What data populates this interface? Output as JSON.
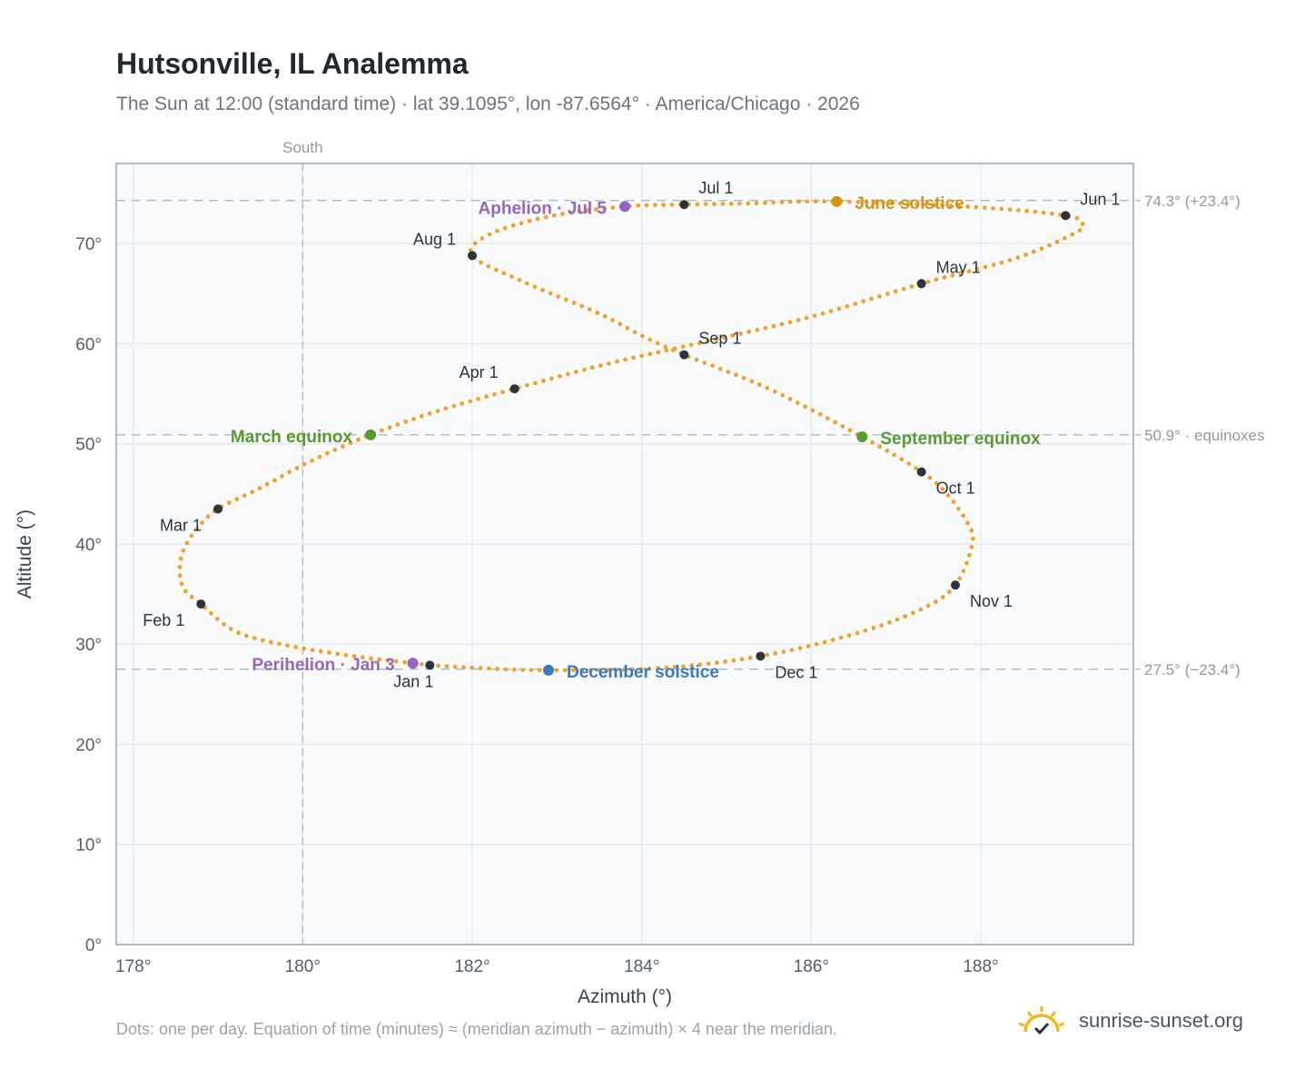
{
  "title": "Hutsonville, IL Analemma",
  "subtitle": "The Sun at 12:00 (standard time) · lat 39.1095°, lon -87.6564° · America/Chicago · 2026",
  "footnote": "Dots: one per day. Equation of time (minutes) ≈ (meridian azimuth − azimuth) × 4 near the meridian.",
  "brand": {
    "name": "sunrise-sunset.org",
    "icon": "sun-checkmark-icon"
  },
  "chart_data": {
    "type": "scatter",
    "xlabel": "Azimuth (°)",
    "ylabel": "Altitude (°)",
    "xlim": [
      177.8,
      189.8
    ],
    "ylim": [
      0,
      78
    ],
    "x_ticks": [
      178,
      180,
      182,
      184,
      186,
      188
    ],
    "x_tick_labels": [
      "178°",
      "180°",
      "182°",
      "184°",
      "186°",
      "188°"
    ],
    "y_ticks": [
      0,
      10,
      20,
      30,
      40,
      50,
      60,
      70
    ],
    "y_tick_labels": [
      "0°",
      "10°",
      "20°",
      "30°",
      "40°",
      "50°",
      "60°",
      "70°"
    ],
    "grid": true,
    "meridian": {
      "x": 180,
      "label": "South"
    },
    "reference_lines": [
      {
        "y": 74.3,
        "label": "74.3° (+23.4°)"
      },
      {
        "y": 50.9,
        "label": "50.9° · equinoxes"
      },
      {
        "y": 27.5,
        "label": "27.5° (−23.4°)"
      }
    ],
    "colors": {
      "daily": "#f0a22e",
      "month": "#2d333b",
      "june_solstice": "#d39515",
      "december_solstice": "#3a7bc0",
      "equinox": "#5a9a32",
      "apsis": "#9467bd",
      "grid": "#e5e9ee",
      "plot_bg": "#f8fafc",
      "frame": "#9aa4b2",
      "reference": "#b4bec8"
    },
    "month_markers": [
      {
        "label": "Jan 1",
        "az": 181.5,
        "alt": 27.9
      },
      {
        "label": "Feb 1",
        "az": 178.8,
        "alt": 34.0
      },
      {
        "label": "Mar 1",
        "az": 179.0,
        "alt": 43.5
      },
      {
        "label": "Apr 1",
        "az": 182.5,
        "alt": 55.5
      },
      {
        "label": "May 1",
        "az": 187.3,
        "alt": 66.0
      },
      {
        "label": "Jun 1",
        "az": 189.0,
        "alt": 72.8
      },
      {
        "label": "Jul 1",
        "az": 184.5,
        "alt": 73.9
      },
      {
        "label": "Aug 1",
        "az": 182.0,
        "alt": 68.8
      },
      {
        "label": "Sep 1",
        "az": 184.5,
        "alt": 58.9
      },
      {
        "label": "Oct 1",
        "az": 187.3,
        "alt": 47.2
      },
      {
        "label": "Nov 1",
        "az": 187.7,
        "alt": 35.9
      },
      {
        "label": "Dec 1",
        "az": 185.4,
        "alt": 28.8
      }
    ],
    "events": [
      {
        "label": "June solstice",
        "az": 186.3,
        "alt": 74.2,
        "kind": "june_solstice"
      },
      {
        "label": "December solstice",
        "az": 182.9,
        "alt": 27.4,
        "kind": "december_solstice"
      },
      {
        "label": "March equinox",
        "az": 180.8,
        "alt": 50.9,
        "kind": "equinox"
      },
      {
        "label": "September equinox",
        "az": 186.6,
        "alt": 50.7,
        "kind": "equinox"
      },
      {
        "label": "Aphelion · Jul 5",
        "az": 183.8,
        "alt": 73.7,
        "kind": "apsis"
      },
      {
        "label": "Perihelion · Jan 3",
        "az": 181.3,
        "alt": 28.1,
        "kind": "apsis"
      }
    ],
    "daily_series": {
      "name": "",
      "points": [
        [
          181.5,
          27.9
        ],
        [
          181.3,
          28.1
        ],
        [
          180.6,
          28.8
        ],
        [
          179.8,
          29.9
        ],
        [
          179.2,
          31.3
        ],
        [
          178.8,
          34.0
        ],
        [
          178.6,
          35.5
        ],
        [
          178.55,
          37.5
        ],
        [
          178.6,
          39.5
        ],
        [
          178.75,
          41.5
        ],
        [
          179.0,
          43.5
        ],
        [
          179.5,
          45.6
        ],
        [
          180.1,
          48.3
        ],
        [
          180.8,
          50.9
        ],
        [
          181.6,
          53.3
        ],
        [
          182.5,
          55.5
        ],
        [
          183.6,
          58.0
        ],
        [
          184.8,
          60.3
        ],
        [
          186.0,
          62.7
        ],
        [
          187.3,
          66.0
        ],
        [
          188.4,
          68.5
        ],
        [
          189.1,
          71.0
        ],
        [
          189.2,
          72.0
        ],
        [
          189.0,
          72.8
        ],
        [
          188.0,
          73.6
        ],
        [
          186.3,
          74.2
        ],
        [
          185.2,
          74.0
        ],
        [
          184.5,
          73.9
        ],
        [
          183.8,
          73.7
        ],
        [
          182.9,
          72.7
        ],
        [
          182.2,
          70.9
        ],
        [
          182.0,
          68.8
        ],
        [
          182.6,
          66.2
        ],
        [
          183.5,
          63.0
        ],
        [
          184.0,
          60.8
        ],
        [
          184.5,
          58.9
        ],
        [
          185.5,
          55.5
        ],
        [
          186.6,
          50.7
        ],
        [
          187.3,
          47.2
        ],
        [
          187.6,
          45.0
        ],
        [
          187.85,
          42.0
        ],
        [
          187.9,
          40.0
        ],
        [
          187.7,
          35.9
        ],
        [
          187.3,
          33.5
        ],
        [
          186.5,
          31.0
        ],
        [
          185.4,
          28.8
        ],
        [
          184.2,
          27.6
        ],
        [
          182.9,
          27.4
        ],
        [
          182.1,
          27.6
        ],
        [
          181.5,
          27.9
        ]
      ]
    }
  }
}
